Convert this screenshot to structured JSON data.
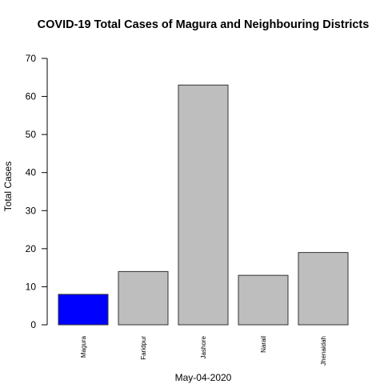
{
  "chart_data": {
    "type": "bar",
    "title": "COVID-19 Total Cases of Magura and Neighbouring Districts",
    "xlabel": "May-04-2020",
    "ylabel": "Total Cases",
    "categories": [
      "Magura",
      "Faridpur",
      "Jashore",
      "Narail",
      "Jhenaidah"
    ],
    "values": [
      8,
      14,
      63,
      13,
      19
    ],
    "colors": [
      "#0000ff",
      "#bebebe",
      "#bebebe",
      "#bebebe",
      "#bebebe"
    ],
    "ylim": [
      0,
      70
    ],
    "yticks": [
      0,
      10,
      20,
      30,
      40,
      50,
      60,
      70
    ],
    "grid": false,
    "legend": "none"
  }
}
